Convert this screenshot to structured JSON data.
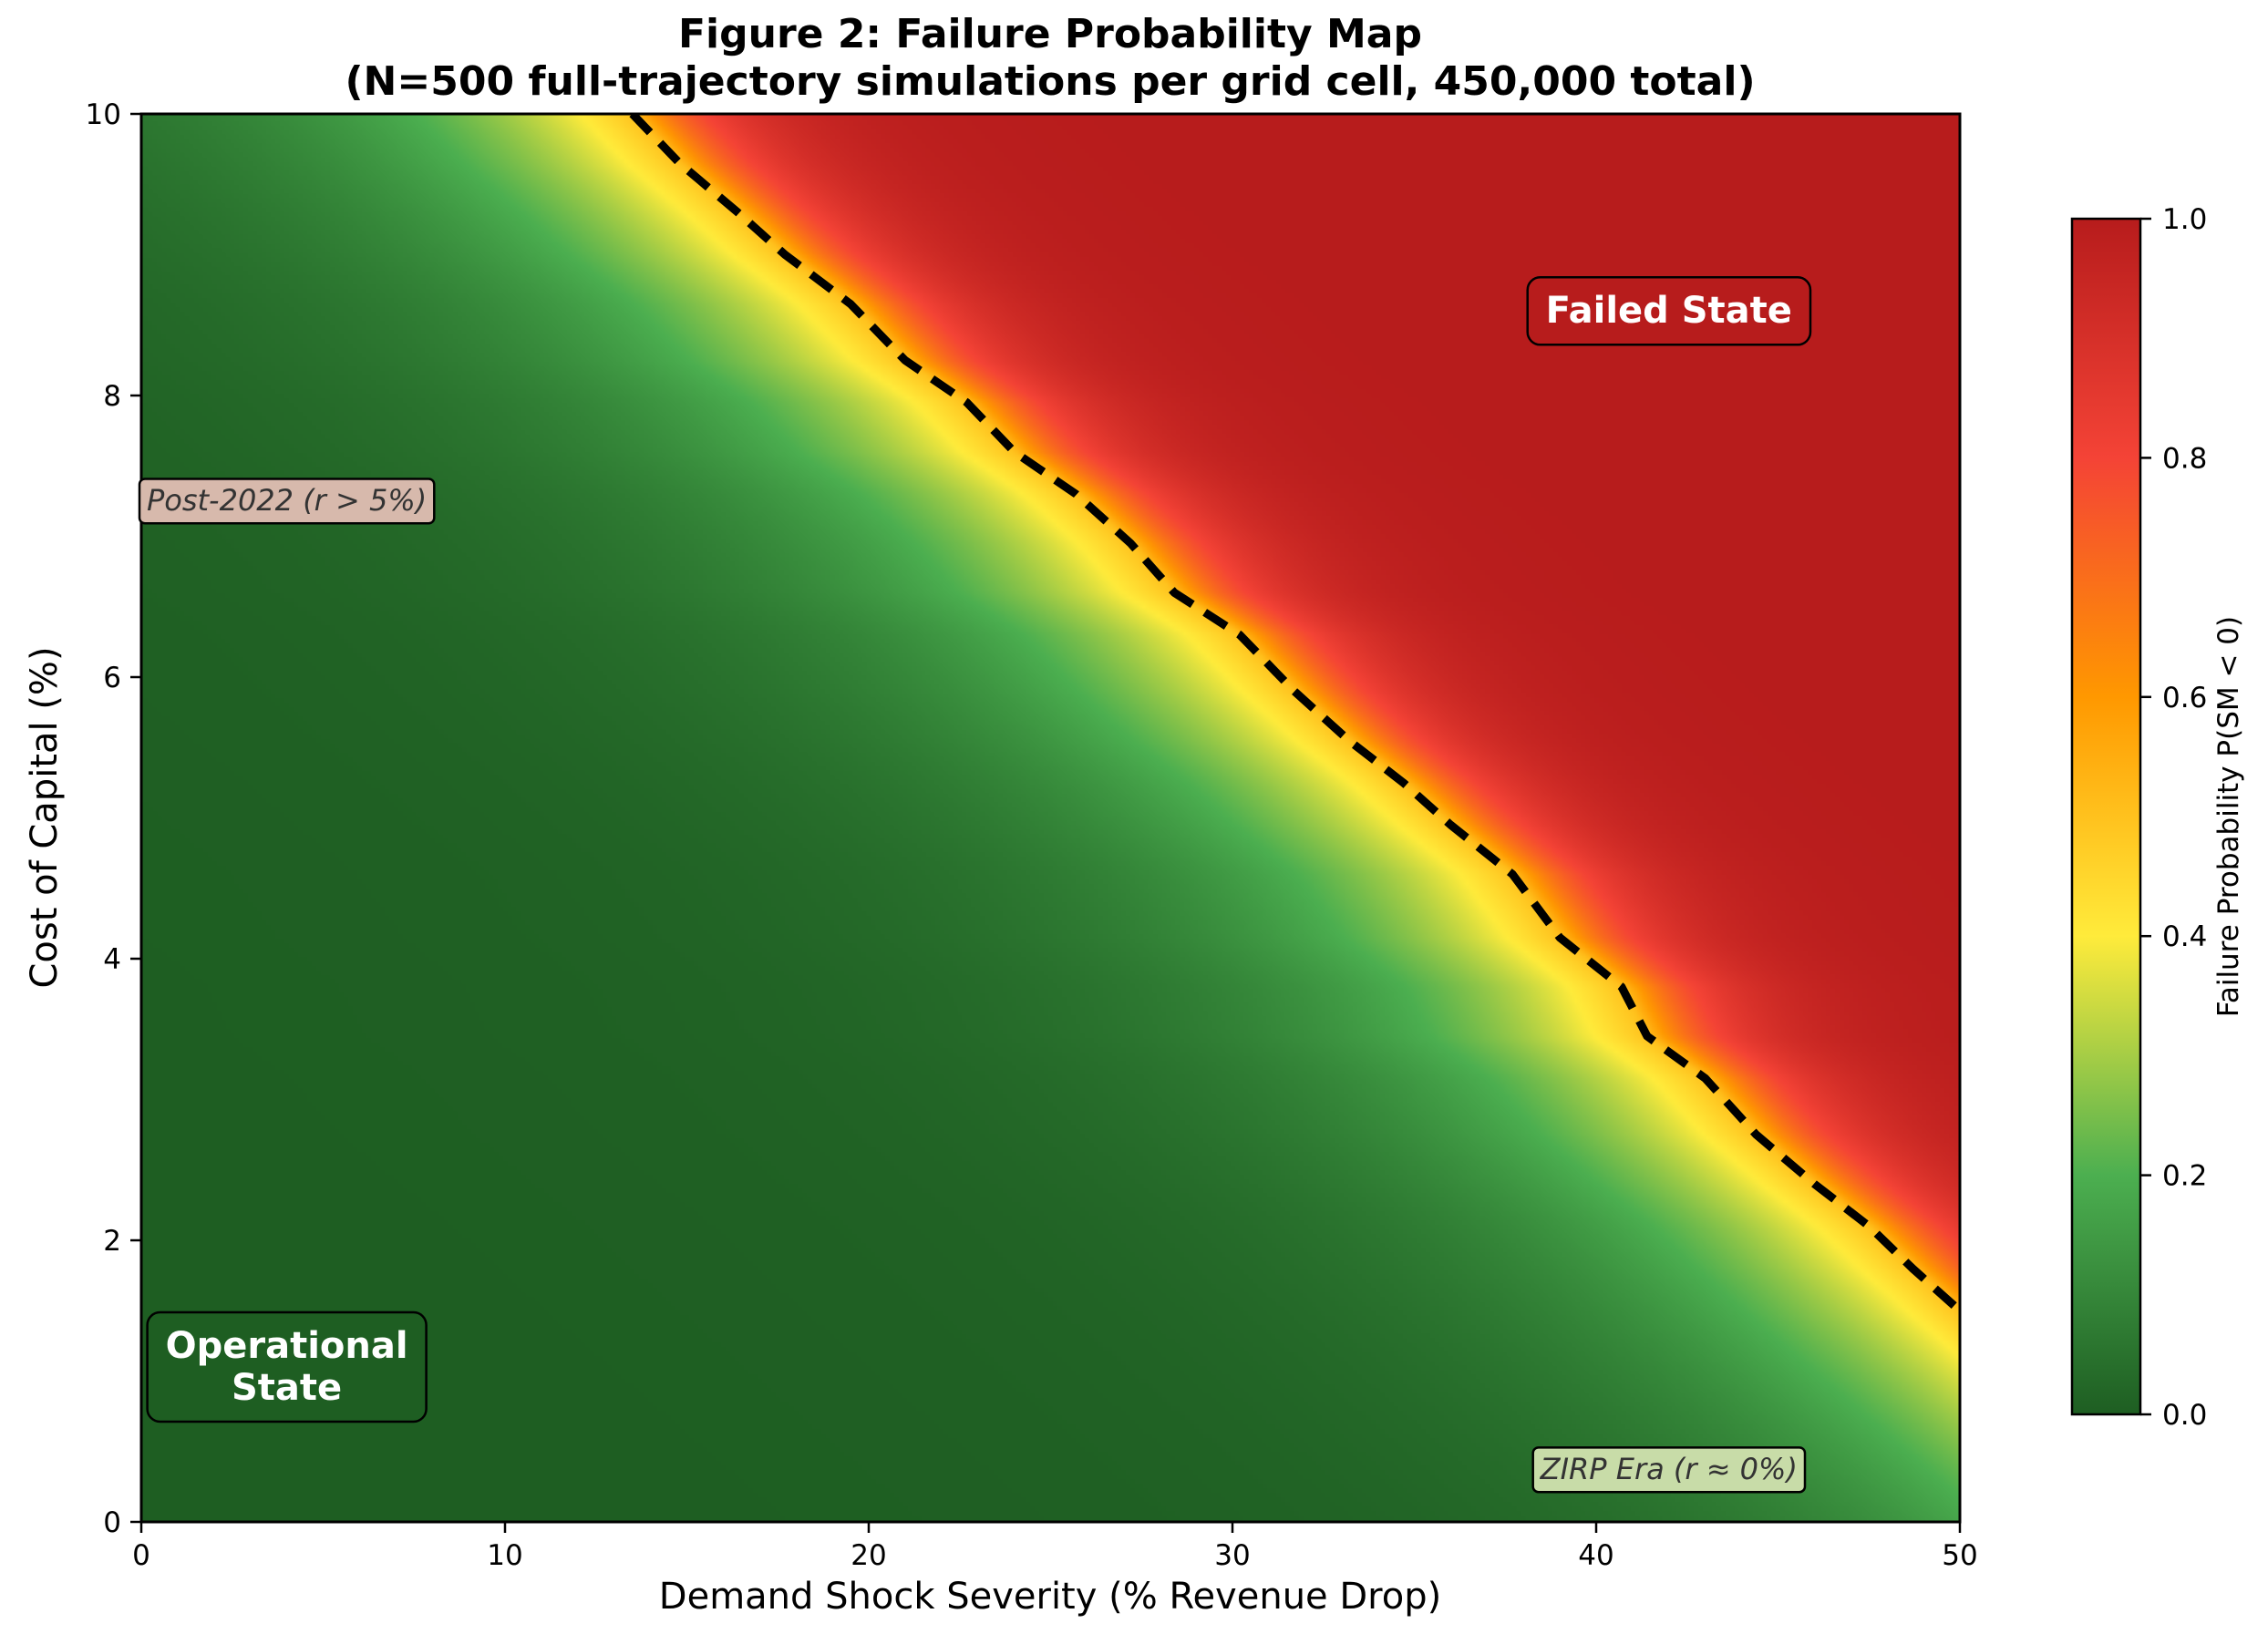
{
  "chart_data": {
    "type": "heatmap",
    "title_line1": "Figure 2: Failure Probability Map",
    "title_line2": "(N=500 full-trajectory simulations per grid cell, 450,000 total)",
    "xlabel": "Demand Shock Severity (% Revenue Drop)",
    "ylabel": "Cost of Capital (%)",
    "xlim": [
      0,
      50
    ],
    "ylim": [
      0,
      10
    ],
    "x_ticks": [
      0,
      10,
      20,
      30,
      40,
      50
    ],
    "y_ticks": [
      0,
      2,
      4,
      6,
      8,
      10
    ],
    "grid": false,
    "colorbar": {
      "label": "Failure Probability P(SM < 0)",
      "range": [
        0,
        1
      ],
      "ticks": [
        "0.0",
        "0.2",
        "0.4",
        "0.6",
        "0.8",
        "1.0"
      ],
      "colors": [
        "#1e5e22",
        "#4caf50",
        "#ffeb3b",
        "#ff9800",
        "#f44336",
        "#b71c1c"
      ]
    },
    "boundary_contour": {
      "level": 0.5,
      "style": "black dashed",
      "points": [
        [
          13.5,
          10.0
        ],
        [
          14.8,
          9.65
        ],
        [
          16.4,
          9.3
        ],
        [
          17.7,
          9.0
        ],
        [
          19.5,
          8.65
        ],
        [
          21.0,
          8.25
        ],
        [
          22.7,
          7.95
        ],
        [
          24.0,
          7.6
        ],
        [
          25.7,
          7.3
        ],
        [
          27.2,
          6.95
        ],
        [
          28.4,
          6.6
        ],
        [
          30.2,
          6.3
        ],
        [
          31.7,
          5.9
        ],
        [
          33.2,
          5.55
        ],
        [
          34.7,
          5.25
        ],
        [
          36.0,
          4.95
        ],
        [
          37.7,
          4.6
        ],
        [
          39.0,
          4.15
        ],
        [
          40.7,
          3.8
        ],
        [
          41.4,
          3.45
        ],
        [
          43.0,
          3.15
        ],
        [
          44.4,
          2.75
        ],
        [
          46.0,
          2.4
        ],
        [
          47.5,
          2.1
        ],
        [
          48.7,
          1.8
        ],
        [
          50.0,
          1.5
        ]
      ]
    },
    "annotations": [
      {
        "text": "Failed State",
        "x": 42.0,
        "y": 8.6,
        "style": "bold",
        "bg": "#b71c1c",
        "fg": "#ffffff"
      },
      {
        "text": "Operational",
        "text2": "State",
        "x": 4.0,
        "y": 1.1,
        "style": "bold",
        "bg": "#1e5e22",
        "fg": "#ffffff"
      },
      {
        "text": "Post-2022 (r > 5%)",
        "x": 4.0,
        "y": 7.25,
        "style": "italic",
        "bg": "#d7b9ac",
        "fg": "#333333"
      },
      {
        "text": "ZIRP Era (r ≈ 0%)",
        "x": 42.0,
        "y": 0.37,
        "style": "italic",
        "bg": "#c8dca8",
        "fg": "#333333"
      }
    ]
  }
}
